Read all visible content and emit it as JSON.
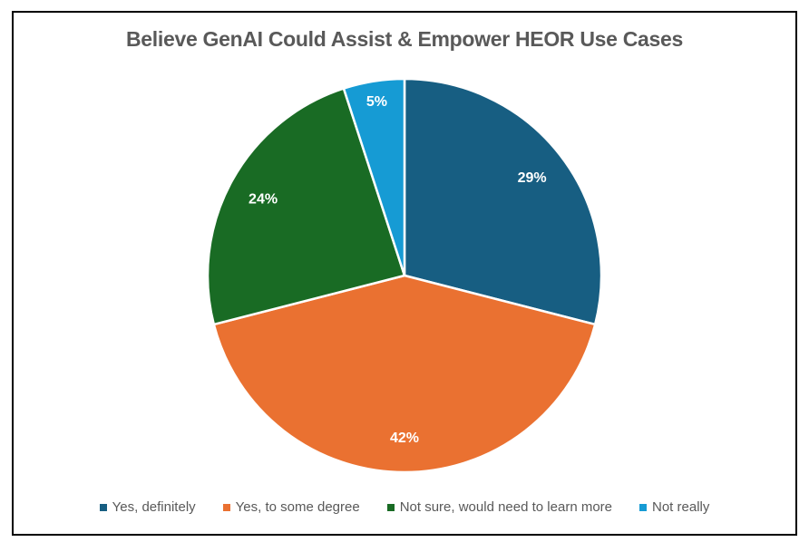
{
  "chart_data": {
    "type": "pie",
    "title": "Believe GenAI Could Assist & Empower HEOR Use Cases",
    "categories": [
      "Yes, definitely",
      "Yes, to some degree",
      "Not sure, would need to learn more",
      "Not really"
    ],
    "values": [
      29,
      42,
      24,
      5
    ],
    "labels": [
      "29%",
      "42%",
      "24%",
      "5%"
    ],
    "colors": [
      "#175E82",
      "#EA7131",
      "#196B24",
      "#169BD4"
    ],
    "legend_position": "bottom",
    "start_angle_deg": 0,
    "direction": "clockwise"
  },
  "legend": [
    {
      "label": "Yes, definitely",
      "color": "#175E82"
    },
    {
      "label": "Yes, to some degree",
      "color": "#EA7131"
    },
    {
      "label": "Not sure, would need to learn more",
      "color": "#196B24"
    },
    {
      "label": "Not really",
      "color": "#169BD4"
    }
  ]
}
